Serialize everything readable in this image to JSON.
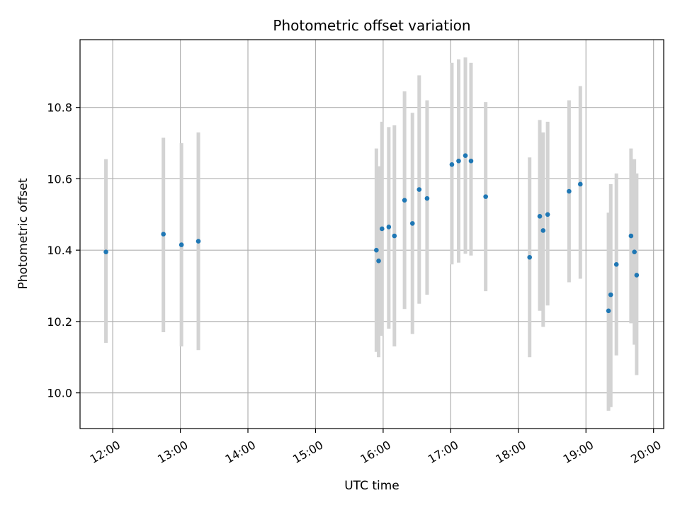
{
  "chart_data": {
    "type": "scatter",
    "title": "Photometric offset variation",
    "xlabel": "UTC time",
    "ylabel": "Photometric offset",
    "grid": true,
    "x_tick_labels": [
      "12:00",
      "13:00",
      "14:00",
      "15:00",
      "16:00",
      "17:00",
      "18:00",
      "19:00",
      "20:00"
    ],
    "y_tick_labels": [
      "10.0",
      "10.2",
      "10.4",
      "10.6",
      "10.8"
    ],
    "y_ticks": [
      10.0,
      10.2,
      10.4,
      10.6,
      10.8
    ],
    "x_ticks": [
      "12:00",
      "13:00",
      "14:00",
      "15:00",
      "16:00",
      "17:00",
      "18:00",
      "19:00",
      "20:00"
    ],
    "xlim": [
      "11:31",
      "20:09"
    ],
    "ylim": [
      9.9,
      10.99
    ],
    "point_color": "#1f77b4",
    "errorbar_color": "#d3d3d3",
    "series": [
      {
        "points": [
          {
            "x": "11:54",
            "y": 10.395,
            "ylow": 10.14,
            "yhigh": 10.655
          },
          {
            "x": "12:45",
            "y": 10.445,
            "ylow": 10.17,
            "yhigh": 10.715
          },
          {
            "x": "13:01",
            "y": 10.415,
            "ylow": 10.13,
            "yhigh": 10.7
          },
          {
            "x": "13:16",
            "y": 10.425,
            "ylow": 10.12,
            "yhigh": 10.73
          },
          {
            "x": "15:54",
            "y": 10.4,
            "ylow": 10.115,
            "yhigh": 10.685
          },
          {
            "x": "15:56",
            "y": 10.37,
            "ylow": 10.1,
            "yhigh": 10.635
          },
          {
            "x": "15:59",
            "y": 10.46,
            "ylow": 10.16,
            "yhigh": 10.76
          },
          {
            "x": "16:05",
            "y": 10.465,
            "ylow": 10.18,
            "yhigh": 10.745
          },
          {
            "x": "16:10",
            "y": 10.44,
            "ylow": 10.13,
            "yhigh": 10.75
          },
          {
            "x": "16:19",
            "y": 10.54,
            "ylow": 10.235,
            "yhigh": 10.845
          },
          {
            "x": "16:26",
            "y": 10.475,
            "ylow": 10.165,
            "yhigh": 10.785
          },
          {
            "x": "16:32",
            "y": 10.57,
            "ylow": 10.25,
            "yhigh": 10.89
          },
          {
            "x": "16:39",
            "y": 10.545,
            "ylow": 10.275,
            "yhigh": 10.82
          },
          {
            "x": "17:01",
            "y": 10.64,
            "ylow": 10.36,
            "yhigh": 10.925
          },
          {
            "x": "17:07",
            "y": 10.65,
            "ylow": 10.365,
            "yhigh": 10.935
          },
          {
            "x": "17:13",
            "y": 10.665,
            "ylow": 10.39,
            "yhigh": 10.94
          },
          {
            "x": "17:18",
            "y": 10.65,
            "ylow": 10.385,
            "yhigh": 10.925
          },
          {
            "x": "17:31",
            "y": 10.55,
            "ylow": 10.285,
            "yhigh": 10.815
          },
          {
            "x": "18:10",
            "y": 10.38,
            "ylow": 10.1,
            "yhigh": 10.66
          },
          {
            "x": "18:19",
            "y": 10.495,
            "ylow": 10.23,
            "yhigh": 10.765
          },
          {
            "x": "18:22",
            "y": 10.455,
            "ylow": 10.185,
            "yhigh": 10.73
          },
          {
            "x": "18:26",
            "y": 10.5,
            "ylow": 10.245,
            "yhigh": 10.76
          },
          {
            "x": "18:45",
            "y": 10.565,
            "ylow": 10.31,
            "yhigh": 10.82
          },
          {
            "x": "18:55",
            "y": 10.585,
            "ylow": 10.32,
            "yhigh": 10.86
          },
          {
            "x": "19:20",
            "y": 10.23,
            "ylow": 9.95,
            "yhigh": 10.505
          },
          {
            "x": "19:22",
            "y": 10.275,
            "ylow": 9.96,
            "yhigh": 10.585
          },
          {
            "x": "19:27",
            "y": 10.36,
            "ylow": 10.105,
            "yhigh": 10.615
          },
          {
            "x": "19:40",
            "y": 10.44,
            "ylow": 10.195,
            "yhigh": 10.685
          },
          {
            "x": "19:43",
            "y": 10.395,
            "ylow": 10.135,
            "yhigh": 10.655
          },
          {
            "x": "19:45",
            "y": 10.33,
            "ylow": 10.05,
            "yhigh": 10.615
          }
        ]
      }
    ]
  }
}
